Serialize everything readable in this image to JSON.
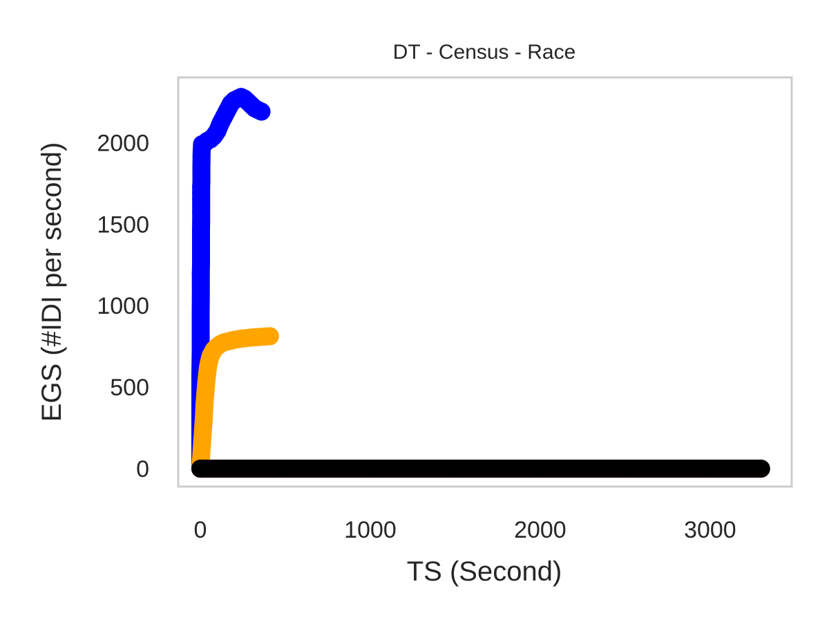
{
  "chart_data": {
    "type": "scatter",
    "title": "DT - Census - Race",
    "xlabel": "TS (Second)",
    "ylabel": "EGS (#IDI  per second)",
    "xlim": [
      -130,
      3480
    ],
    "ylim": [
      -110,
      2400
    ],
    "xticks": [
      0,
      1000,
      2000,
      3000
    ],
    "yticks": [
      0,
      500,
      1000,
      1500,
      2000
    ],
    "grid": false,
    "frame_color": "#cccccc",
    "series": [
      {
        "color": "#0000ff",
        "x": [
          0,
          0,
          0,
          0,
          0,
          2,
          2,
          2,
          3,
          3,
          3,
          4,
          4,
          4,
          4,
          4,
          5,
          5,
          5,
          5,
          5,
          5,
          6,
          6,
          6,
          6,
          7,
          7,
          8,
          9,
          10,
          20,
          30,
          40,
          60,
          80,
          100,
          120,
          140,
          160,
          180,
          200,
          220,
          240,
          260,
          280,
          300,
          320,
          340,
          360
        ],
        "y": [
          0,
          70,
          170,
          360,
          570,
          730,
          870,
          960,
          1060,
          1140,
          1200,
          1260,
          1310,
          1360,
          1410,
          1470,
          1520,
          1570,
          1610,
          1650,
          1690,
          1730,
          1760,
          1800,
          1830,
          1860,
          1890,
          1920,
          1950,
          1970,
          1990,
          1990,
          2000,
          2010,
          2020,
          2040,
          2070,
          2120,
          2160,
          2200,
          2240,
          2260,
          2270,
          2280,
          2270,
          2250,
          2230,
          2210,
          2200,
          2190
        ]
      },
      {
        "color": "#ffa500",
        "x": [
          0,
          10,
          20,
          25,
          30,
          35,
          40,
          45,
          50,
          60,
          70,
          80,
          90,
          100,
          120,
          140,
          160,
          180,
          200,
          230,
          260,
          290,
          320,
          350,
          380,
          410
        ],
        "y": [
          0,
          150,
          300,
          400,
          470,
          530,
          580,
          620,
          650,
          690,
          710,
          730,
          740,
          750,
          765,
          775,
          780,
          785,
          790,
          795,
          800,
          803,
          806,
          808,
          810,
          812
        ]
      },
      {
        "color": "#ff0000",
        "x": [
          0,
          500,
          1000,
          1500,
          2000,
          2500,
          3000,
          3300
        ],
        "y": [
          0,
          0,
          0,
          0,
          0,
          0,
          0,
          0
        ]
      },
      {
        "color": "#000000",
        "x": [
          0,
          100,
          200,
          300,
          400,
          500,
          600,
          700,
          800,
          900,
          1000,
          1100,
          1200,
          1300,
          1400,
          1500,
          1600,
          1700,
          1800,
          1900,
          2000,
          2100,
          2200,
          2300,
          2400,
          2500,
          2600,
          2700,
          2800,
          2900,
          3000,
          3100,
          3200,
          3300
        ],
        "y": [
          0,
          0,
          0,
          0,
          0,
          0,
          0,
          0,
          0,
          0,
          0,
          0,
          0,
          0,
          0,
          0,
          0,
          0,
          0,
          0,
          0,
          0,
          0,
          0,
          0,
          0,
          0,
          0,
          0,
          0,
          0,
          0,
          0,
          0
        ]
      }
    ]
  }
}
